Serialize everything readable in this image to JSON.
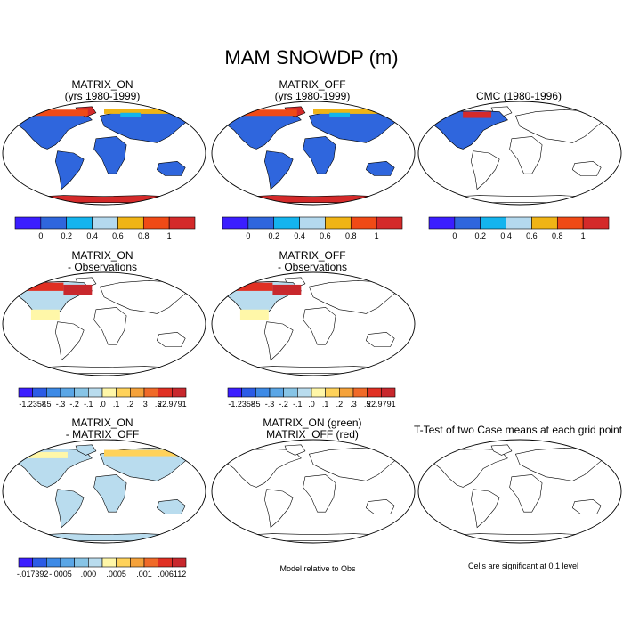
{
  "figure_title": "MAM SNOWDP (m)",
  "panels": {
    "p1": {
      "title1": "MATRIX_ON",
      "title2": "(yrs 1980-1999)"
    },
    "p2": {
      "title1": "MATRIX_OFF",
      "title2": "(yrs 1980-1999)"
    },
    "p3": {
      "title1": "CMC (1980-1996)"
    },
    "p4": {
      "title1": "MATRIX_ON",
      "title2": "- Observations"
    },
    "p5": {
      "title1": "MATRIX_OFF",
      "title2": "- Observations"
    },
    "p7": {
      "title1": "MATRIX_ON",
      "title2": "- MATRIX_OFF"
    },
    "p8": {
      "title1": "MATRIX_ON (green)",
      "title2": "MATRIX_OFF (red)",
      "note": "Model relative to Obs"
    },
    "p9": {
      "title1": "T-Test of two Case means at each grid point",
      "note": "Cells are significant at 0.1 level"
    }
  },
  "colorbars": {
    "abs": {
      "colors": [
        "#3b1eff",
        "#2f66dd",
        "#14b4ee",
        "#b4d9ee",
        "#f0b416",
        "#f04a16",
        "#d42a2a"
      ],
      "labels": [
        "0",
        "0.2",
        "0.4",
        "0.6",
        "0.8",
        "1"
      ]
    },
    "diff": {
      "colors": [
        "#3b1eff",
        "#2b5be6",
        "#3d8ae6",
        "#5aa6e6",
        "#87c4e6",
        "#b9dcee",
        "#fff7a8",
        "#ffd25a",
        "#f5a23a",
        "#f06a28",
        "#e03023",
        "#c8282d"
      ],
      "labels": [
        "-1.2358",
        "-.5",
        "-.3",
        "-.2",
        "-.1",
        ".0",
        ".1",
        ".2",
        ".3",
        ".5",
        "22.9791"
      ]
    },
    "diff2": {
      "colors": [
        "#3b1eff",
        "#2b5be6",
        "#3d8ae6",
        "#5aa6e6",
        "#87c4e6",
        "#b9dcee",
        "#fff7a8",
        "#ffd25a",
        "#f5a23a",
        "#f06a28",
        "#e03023",
        "#c8282d"
      ],
      "labels": [
        "-.017392",
        "-.0005",
        ".000",
        ".0005",
        ".001",
        ".006112"
      ]
    }
  }
}
